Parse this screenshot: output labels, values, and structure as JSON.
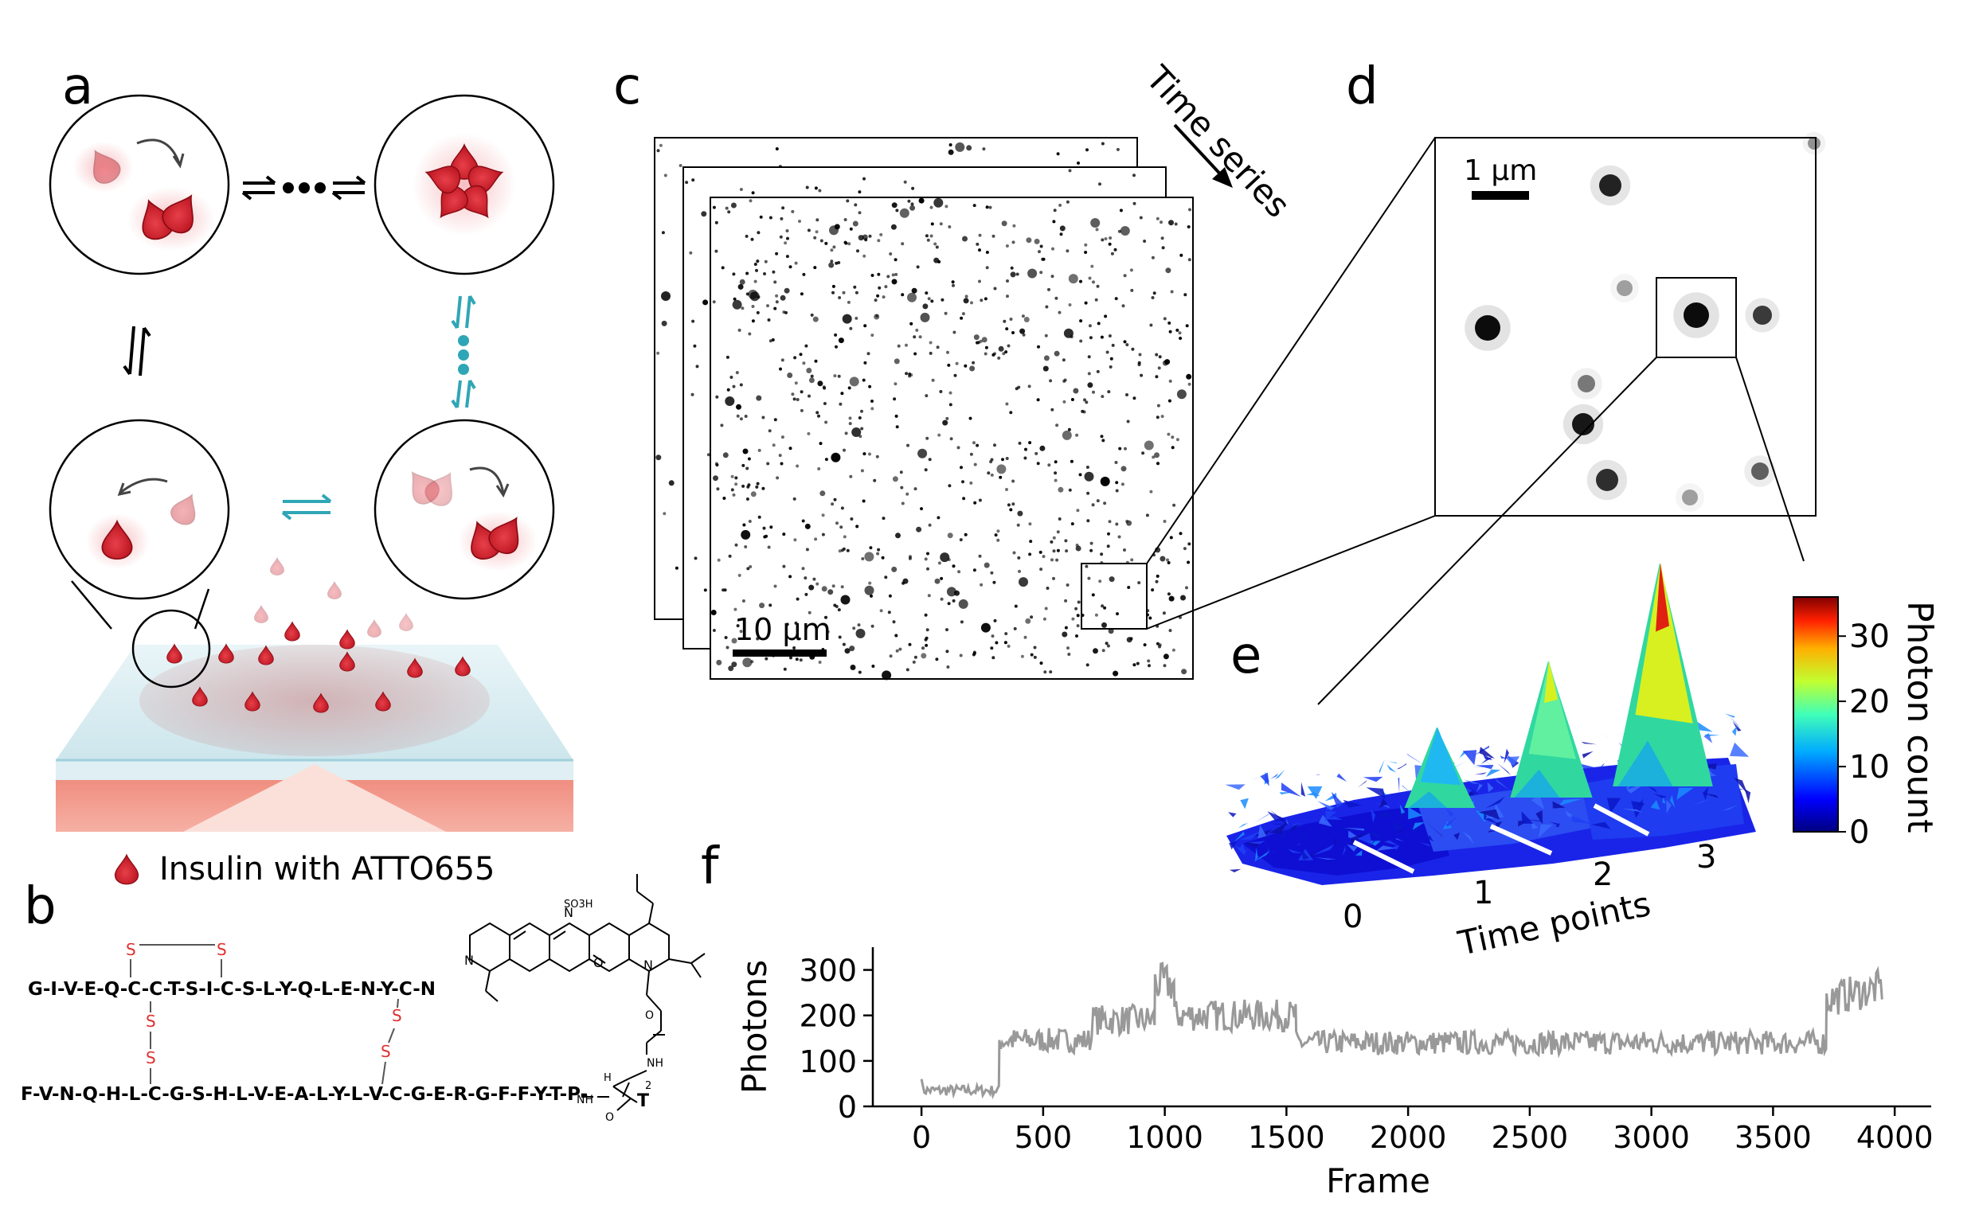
{
  "panels": {
    "a": {
      "letter": "a",
      "legend": "Insulin with ATTO655"
    },
    "b": {
      "letter": "b",
      "chain_a": "G-I-V-E-Q-C-C-T-S-I-C-S-L-Y-Q-L-E-N-Y-C-N",
      "chain_b": "F-V-N-Q-H-L-C-G-S-H-L-V-E-A-L-Y-L-V-C-G-E-R-G-F-F-Y-T-P-",
      "disulfide_atom": "S",
      "dye_labels": {
        "so3h": "SO3H",
        "n": "N",
        "n_plus": "N",
        "nh": "NH",
        "o": "O",
        "h": "H",
        "sub2": "2",
        "t": "T"
      }
    },
    "c": {
      "letter": "c",
      "scalebar": "10 µm",
      "arrow_label": "Time series"
    },
    "d": {
      "letter": "d",
      "scalebar": "1 µm"
    },
    "e": {
      "letter": "e",
      "time_points": [
        "0",
        "1",
        "2",
        "3"
      ],
      "axis_label": "Time points",
      "colorbar": {
        "label": "Photon count",
        "ticks": [
          "0",
          "10",
          "20",
          "30"
        ],
        "range": [
          0,
          36
        ]
      },
      "peak_heights": [
        13,
        22,
        36
      ]
    },
    "f": {
      "letter": "f"
    }
  },
  "chart_data": {
    "type": "line",
    "xlabel": "Frame",
    "ylabel": "Photons",
    "xlim": [
      -200,
      4150
    ],
    "ylim": [
      0,
      350
    ],
    "xticks": [
      0,
      500,
      1000,
      1500,
      2000,
      2500,
      3000,
      3500,
      4000
    ],
    "yticks": [
      0,
      100,
      200,
      300
    ],
    "color": "#999999",
    "segments": [
      {
        "x_start": 0,
        "x_end": 320,
        "level": 35
      },
      {
        "x_start": 320,
        "x_end": 700,
        "level": 145
      },
      {
        "x_start": 700,
        "x_end": 960,
        "level": 190
      },
      {
        "x_start": 960,
        "x_end": 1040,
        "level": 270
      },
      {
        "x_start": 1040,
        "x_end": 1540,
        "level": 200
      },
      {
        "x_start": 1540,
        "x_end": 3720,
        "level": 140
      },
      {
        "x_start": 3720,
        "x_end": 3950,
        "level": 235
      }
    ]
  }
}
